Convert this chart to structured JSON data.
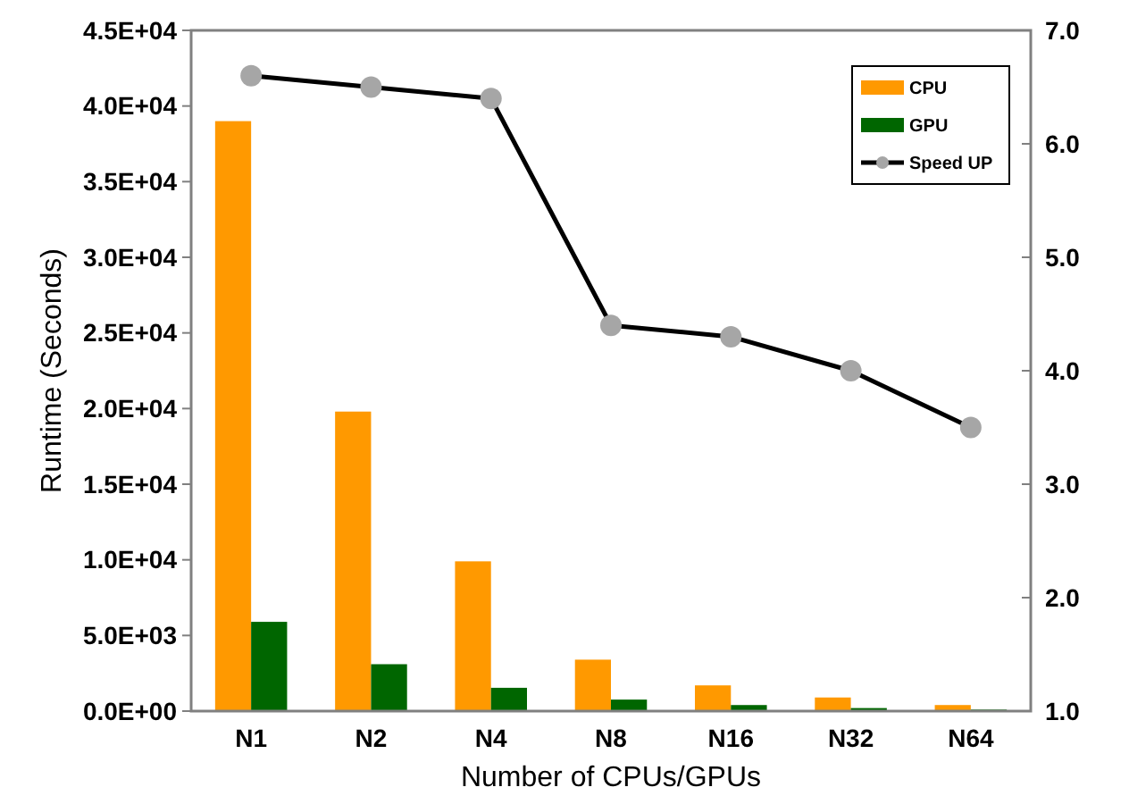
{
  "chart_data": {
    "type": "bar",
    "xlabel": "Number of CPUs/GPUs",
    "ylabel": "Runtime (Seconds)",
    "categories": [
      "N1",
      "N2",
      "N4",
      "N8",
      "N16",
      "N32",
      "N64"
    ],
    "series": [
      {
        "name": "CPU",
        "color": "#ff9900",
        "values": [
          39000,
          19800,
          9900,
          3400,
          1700,
          900,
          400
        ]
      },
      {
        "name": "GPU",
        "color": "#006600",
        "values": [
          5900,
          3100,
          1540,
          760,
          400,
          200,
          100
        ]
      },
      {
        "name": "Speed UP",
        "type": "line",
        "axis": "y2",
        "color": "#000000",
        "marker": "circle",
        "values": [
          6.6,
          6.5,
          6.4,
          4.4,
          4.3,
          4.0,
          3.5
        ]
      }
    ],
    "ylim": [
      0,
      45000
    ],
    "yticks": [
      {
        "value": 0,
        "label": "0.0E+00"
      },
      {
        "value": 5000,
        "label": "5.0E+03"
      },
      {
        "value": 10000,
        "label": "1.0E+04"
      },
      {
        "value": 15000,
        "label": "1.5E+04"
      },
      {
        "value": 20000,
        "label": "2.0E+04"
      },
      {
        "value": 25000,
        "label": "2.5E+04"
      },
      {
        "value": 30000,
        "label": "3.0E+04"
      },
      {
        "value": 35000,
        "label": "3.5E+04"
      },
      {
        "value": 40000,
        "label": "4.0E+04"
      },
      {
        "value": 45000,
        "label": "4.5E+04"
      }
    ],
    "y2lim": [
      1,
      7
    ],
    "y2ticks": [
      {
        "value": 1,
        "label": "1.0"
      },
      {
        "value": 2,
        "label": "2.0"
      },
      {
        "value": 3,
        "label": "3.0"
      },
      {
        "value": 4,
        "label": "4.0"
      },
      {
        "value": 5,
        "label": "5.0"
      },
      {
        "value": 6,
        "label": "6.0"
      },
      {
        "value": 7,
        "label": "7.0"
      }
    ],
    "grid": false,
    "legend": "top right"
  }
}
